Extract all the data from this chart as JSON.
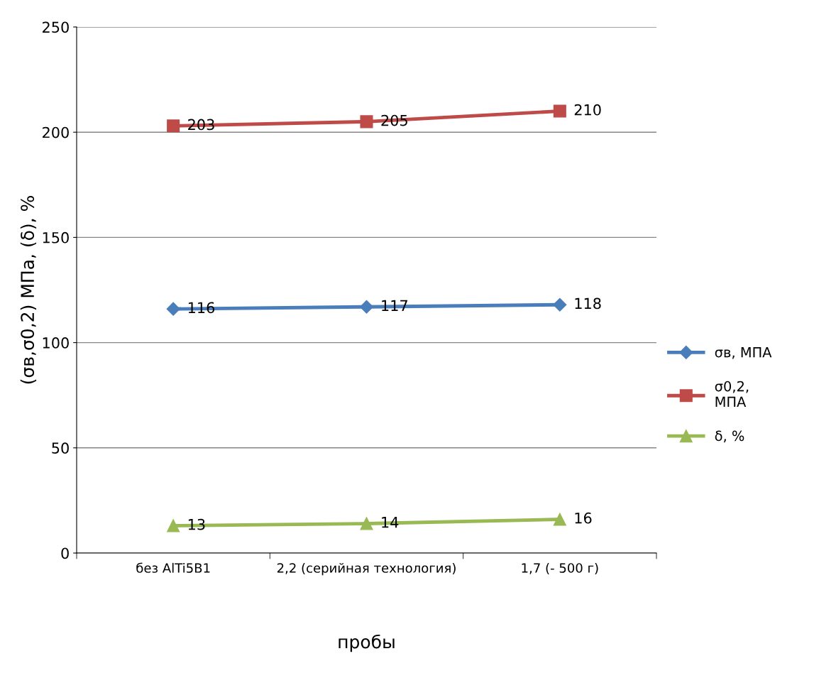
{
  "chart_data": {
    "type": "line",
    "xlabel": "пробы",
    "ylabel": "(σв,σ0,2) МПа, (δ), %",
    "categories": [
      "без AlTi5B1",
      "2,2 (серийная технология)",
      "1,7 (- 500 г)"
    ],
    "series": [
      {
        "name": "σв, МПА",
        "color": "#4a7ebb",
        "marker": "diamond",
        "values": [
          116,
          117,
          118
        ]
      },
      {
        "name": "σ0,2, МПА",
        "color": "#be4b48",
        "marker": "square",
        "values": [
          203,
          205,
          210
        ]
      },
      {
        "name": "δ, %",
        "color": "#98b954",
        "marker": "triangle",
        "values": [
          13,
          14,
          16
        ]
      }
    ],
    "ylim": [
      0,
      250
    ],
    "yticks": [
      0,
      50,
      100,
      150,
      200,
      250
    ],
    "grid": "y",
    "legend": "right",
    "data_labels": true
  }
}
